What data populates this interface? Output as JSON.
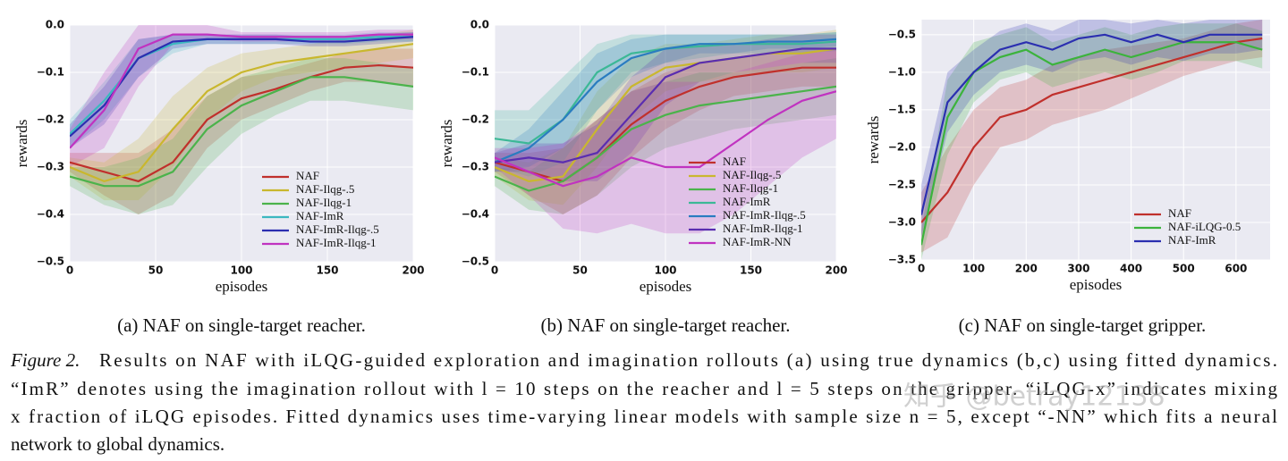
{
  "chart_data": [
    {
      "type": "line",
      "caption": "(a) NAF on single-target reacher.",
      "xlabel": "episodes",
      "ylabel": "rewards",
      "x": [
        0,
        20,
        40,
        60,
        80,
        100,
        120,
        140,
        160,
        180,
        200
      ],
      "xlim": [
        0,
        200
      ],
      "xticks": [
        0,
        50,
        100,
        150,
        200
      ],
      "ylim": [
        -0.5,
        0
      ],
      "yticks": [
        {
          "value": -0.5,
          "label": "−0.5"
        },
        {
          "value": -0.4,
          "label": "−0.4"
        },
        {
          "value": -0.3,
          "label": "−0.3"
        },
        {
          "value": -0.2,
          "label": "−0.2"
        },
        {
          "value": -0.1,
          "label": "−0.1"
        },
        {
          "value": 0,
          "label": "0.0"
        }
      ],
      "grid": true,
      "legend": "lower right",
      "series": [
        {
          "name": "NAF",
          "color": "#c0302c",
          "values": [
            -0.29,
            -0.31,
            -0.33,
            -0.29,
            -0.2,
            -0.155,
            -0.135,
            -0.11,
            -0.09,
            -0.085,
            -0.09
          ],
          "lower": [
            -0.31,
            -0.36,
            -0.4,
            -0.36,
            -0.26,
            -0.2,
            -0.17,
            -0.14,
            -0.12,
            -0.12,
            -0.13
          ],
          "upper": [
            -0.27,
            -0.27,
            -0.27,
            -0.22,
            -0.15,
            -0.11,
            -0.1,
            -0.08,
            -0.06,
            -0.05,
            -0.05
          ]
        },
        {
          "name": "NAF-Ilqg-.5",
          "color": "#c9b72e",
          "values": [
            -0.3,
            -0.33,
            -0.31,
            -0.22,
            -0.14,
            -0.1,
            -0.08,
            -0.07,
            -0.06,
            -0.05,
            -0.04
          ],
          "lower": [
            -0.32,
            -0.37,
            -0.37,
            -0.3,
            -0.2,
            -0.14,
            -0.11,
            -0.1,
            -0.09,
            -0.08,
            -0.07
          ],
          "upper": [
            -0.28,
            -0.29,
            -0.24,
            -0.15,
            -0.09,
            -0.06,
            -0.05,
            -0.04,
            -0.03,
            -0.02,
            -0.01
          ]
        },
        {
          "name": "NAF-Ilqg-1",
          "color": "#4bb34b",
          "values": [
            -0.32,
            -0.34,
            -0.34,
            -0.31,
            -0.22,
            -0.17,
            -0.14,
            -0.11,
            -0.11,
            -0.12,
            -0.13
          ],
          "lower": [
            -0.34,
            -0.38,
            -0.4,
            -0.38,
            -0.3,
            -0.23,
            -0.19,
            -0.16,
            -0.16,
            -0.17,
            -0.18
          ],
          "upper": [
            -0.3,
            -0.3,
            -0.28,
            -0.24,
            -0.15,
            -0.11,
            -0.09,
            -0.07,
            -0.07,
            -0.08,
            -0.09
          ]
        },
        {
          "name": "NAF-ImR",
          "color": "#3cb8c0",
          "values": [
            -0.23,
            -0.16,
            -0.07,
            -0.04,
            -0.03,
            -0.03,
            -0.03,
            -0.03,
            -0.03,
            -0.025,
            -0.025
          ],
          "lower": [
            -0.26,
            -0.2,
            -0.11,
            -0.06,
            -0.04,
            -0.04,
            -0.04,
            -0.04,
            -0.04,
            -0.035,
            -0.035
          ],
          "upper": [
            -0.2,
            -0.12,
            -0.03,
            -0.02,
            -0.02,
            -0.02,
            -0.02,
            -0.02,
            -0.02,
            -0.015,
            -0.015
          ]
        },
        {
          "name": "NAF-ImR-Ilqg-.5",
          "color": "#2b2fb0",
          "values": [
            -0.235,
            -0.17,
            -0.07,
            -0.035,
            -0.03,
            -0.03,
            -0.03,
            -0.035,
            -0.035,
            -0.03,
            -0.025
          ],
          "lower": [
            -0.26,
            -0.21,
            -0.11,
            -0.05,
            -0.04,
            -0.04,
            -0.04,
            -0.045,
            -0.045,
            -0.04,
            -0.035
          ],
          "upper": [
            -0.21,
            -0.13,
            -0.03,
            -0.02,
            -0.02,
            -0.02,
            -0.02,
            -0.025,
            -0.025,
            -0.02,
            -0.015
          ]
        },
        {
          "name": "NAF-ImR-Ilqg-1",
          "color": "#c033c0",
          "values": [
            -0.26,
            -0.18,
            -0.05,
            -0.02,
            -0.02,
            -0.025,
            -0.025,
            -0.025,
            -0.025,
            -0.02,
            -0.02
          ],
          "lower": [
            -0.3,
            -0.26,
            -0.13,
            -0.04,
            -0.03,
            -0.035,
            -0.035,
            -0.035,
            -0.035,
            -0.03,
            -0.03
          ],
          "upper": [
            -0.22,
            -0.1,
            0,
            0,
            0,
            -0.015,
            -0.015,
            -0.015,
            -0.015,
            -0.01,
            -0.01
          ]
        }
      ]
    },
    {
      "type": "line",
      "caption": "(b) NAF on single-target reacher.",
      "xlabel": "episodes",
      "ylabel": "rewards",
      "x": [
        0,
        20,
        40,
        60,
        80,
        100,
        120,
        140,
        160,
        180,
        200
      ],
      "xlim": [
        0,
        200
      ],
      "xticks": [
        0,
        50,
        100,
        150,
        200
      ],
      "ylim": [
        -0.5,
        0
      ],
      "yticks": [
        {
          "value": -0.5,
          "label": "−0.5"
        },
        {
          "value": -0.4,
          "label": "−0.4"
        },
        {
          "value": -0.3,
          "label": "−0.3"
        },
        {
          "value": -0.2,
          "label": "−0.2"
        },
        {
          "value": -0.1,
          "label": "−0.1"
        },
        {
          "value": 0,
          "label": "0.0"
        }
      ],
      "grid": true,
      "legend": "lower right",
      "series": [
        {
          "name": "NAF",
          "color": "#c0302c",
          "values": [
            -0.29,
            -0.31,
            -0.33,
            -0.28,
            -0.21,
            -0.16,
            -0.13,
            -0.11,
            -0.1,
            -0.09,
            -0.09
          ],
          "lower": [
            -0.31,
            -0.36,
            -0.4,
            -0.36,
            -0.28,
            -0.22,
            -0.18,
            -0.15,
            -0.14,
            -0.13,
            -0.13
          ],
          "upper": [
            -0.27,
            -0.27,
            -0.26,
            -0.2,
            -0.14,
            -0.1,
            -0.08,
            -0.07,
            -0.06,
            -0.05,
            -0.05
          ]
        },
        {
          "name": "NAF-Ilqg-.5",
          "color": "#c9b72e",
          "values": [
            -0.3,
            -0.33,
            -0.32,
            -0.22,
            -0.13,
            -0.09,
            -0.08,
            -0.07,
            -0.06,
            -0.06,
            -0.05
          ],
          "lower": [
            -0.32,
            -0.37,
            -0.38,
            -0.3,
            -0.2,
            -0.14,
            -0.12,
            -0.11,
            -0.1,
            -0.1,
            -0.09
          ],
          "upper": [
            -0.28,
            -0.29,
            -0.26,
            -0.14,
            -0.07,
            -0.04,
            -0.04,
            -0.03,
            -0.02,
            -0.02,
            -0.01
          ]
        },
        {
          "name": "NAF-Ilqg-1",
          "color": "#4bb34b",
          "values": [
            -0.32,
            -0.35,
            -0.33,
            -0.28,
            -0.22,
            -0.19,
            -0.17,
            -0.16,
            -0.15,
            -0.14,
            -0.13
          ],
          "lower": [
            -0.34,
            -0.39,
            -0.4,
            -0.36,
            -0.3,
            -0.26,
            -0.24,
            -0.22,
            -0.21,
            -0.2,
            -0.19
          ],
          "upper": [
            -0.3,
            -0.31,
            -0.26,
            -0.2,
            -0.14,
            -0.12,
            -0.1,
            -0.1,
            -0.09,
            -0.08,
            -0.07
          ]
        },
        {
          "name": "NAF-ImR",
          "color": "#3cb896",
          "values": [
            -0.24,
            -0.25,
            -0.2,
            -0.1,
            -0.06,
            -0.05,
            -0.045,
            -0.04,
            -0.04,
            -0.04,
            -0.035
          ],
          "lower": [
            -0.3,
            -0.32,
            -0.29,
            -0.18,
            -0.1,
            -0.08,
            -0.07,
            -0.06,
            -0.06,
            -0.06,
            -0.055
          ],
          "upper": [
            -0.18,
            -0.18,
            -0.11,
            -0.04,
            -0.02,
            -0.02,
            -0.02,
            -0.02,
            -0.02,
            -0.02,
            -0.015
          ]
        },
        {
          "name": "NAF-ImR-Ilqg-.5",
          "color": "#2a7cc0",
          "values": [
            -0.29,
            -0.26,
            -0.2,
            -0.12,
            -0.07,
            -0.05,
            -0.04,
            -0.04,
            -0.035,
            -0.035,
            -0.03
          ],
          "lower": [
            -0.31,
            -0.3,
            -0.26,
            -0.18,
            -0.11,
            -0.08,
            -0.06,
            -0.06,
            -0.05,
            -0.05,
            -0.045
          ],
          "upper": [
            -0.27,
            -0.22,
            -0.14,
            -0.06,
            -0.03,
            -0.02,
            -0.02,
            -0.02,
            -0.02,
            -0.02,
            -0.015
          ]
        },
        {
          "name": "NAF-ImR-Ilqg-1",
          "color": "#5a2db0",
          "values": [
            -0.29,
            -0.28,
            -0.29,
            -0.27,
            -0.19,
            -0.11,
            -0.08,
            -0.07,
            -0.06,
            -0.05,
            -0.05
          ],
          "lower": [
            -0.31,
            -0.31,
            -0.33,
            -0.33,
            -0.27,
            -0.17,
            -0.12,
            -0.1,
            -0.09,
            -0.08,
            -0.08
          ],
          "upper": [
            -0.27,
            -0.25,
            -0.25,
            -0.21,
            -0.11,
            -0.05,
            -0.04,
            -0.04,
            -0.03,
            -0.02,
            -0.02
          ]
        },
        {
          "name": "NAF-ImR-NN",
          "color": "#c033c0",
          "values": [
            -0.28,
            -0.31,
            -0.34,
            -0.32,
            -0.28,
            -0.3,
            -0.3,
            -0.25,
            -0.2,
            -0.16,
            -0.14
          ],
          "lower": [
            -0.3,
            -0.36,
            -0.43,
            -0.44,
            -0.42,
            -0.44,
            -0.44,
            -0.4,
            -0.34,
            -0.28,
            -0.24
          ],
          "upper": [
            -0.26,
            -0.26,
            -0.25,
            -0.2,
            -0.14,
            -0.12,
            -0.12,
            -0.1,
            -0.08,
            -0.06,
            -0.05
          ]
        }
      ]
    },
    {
      "type": "line",
      "caption": "(c) NAF on single-target gripper.",
      "xlabel": "episodes",
      "ylabel": "rewards",
      "x": [
        0,
        50,
        100,
        150,
        200,
        250,
        300,
        350,
        400,
        450,
        500,
        550,
        600,
        650
      ],
      "xlim": [
        0,
        665
      ],
      "xticks": [
        0,
        100,
        200,
        300,
        400,
        500,
        600
      ],
      "ylim": [
        -3.5,
        -0.3
      ],
      "yticks": [
        {
          "value": -3.5,
          "label": "−3.5"
        },
        {
          "value": -3,
          "label": "−3.0"
        },
        {
          "value": -2.5,
          "label": "−2.5"
        },
        {
          "value": -2,
          "label": "−2.0"
        },
        {
          "value": -1.5,
          "label": "−1.5"
        },
        {
          "value": -1,
          "label": "−1.0"
        },
        {
          "value": -0.5,
          "label": "−0.5"
        }
      ],
      "grid": true,
      "legend": "lower right",
      "series": [
        {
          "name": "NAF",
          "color": "#c0302c",
          "values": [
            -3,
            -2.6,
            -2,
            -1.6,
            -1.5,
            -1.3,
            -1.2,
            -1.1,
            -1,
            -0.9,
            -0.8,
            -0.7,
            -0.6,
            -0.55
          ],
          "lower": [
            -3.4,
            -3.2,
            -2.5,
            -2,
            -1.9,
            -1.7,
            -1.6,
            -1.5,
            -1.35,
            -1.2,
            -1.05,
            -0.95,
            -0.85,
            -0.8
          ],
          "upper": [
            -2.6,
            -2,
            -1.5,
            -1.2,
            -1.1,
            -0.9,
            -0.8,
            -0.7,
            -0.65,
            -0.6,
            -0.55,
            -0.45,
            -0.35,
            -0.3
          ]
        },
        {
          "name": "NAF-iLQG-0.5",
          "color": "#3cb33c",
          "values": [
            -3.3,
            -1.6,
            -1,
            -0.8,
            -0.7,
            -0.9,
            -0.8,
            -0.7,
            -0.8,
            -0.7,
            -0.6,
            -0.6,
            -0.6,
            -0.7
          ],
          "lower": [
            -3.5,
            -2.1,
            -1.4,
            -1.1,
            -1,
            -1.2,
            -1.1,
            -1,
            -1.1,
            -1,
            -0.85,
            -0.85,
            -0.85,
            -0.95
          ],
          "upper": [
            -3.1,
            -1.1,
            -0.6,
            -0.5,
            -0.4,
            -0.6,
            -0.5,
            -0.4,
            -0.5,
            -0.4,
            -0.35,
            -0.35,
            -0.35,
            -0.45
          ]
        },
        {
          "name": "NAF-ImR",
          "color": "#2b2fb0",
          "values": [
            -2.9,
            -1.4,
            -1,
            -0.7,
            -0.6,
            -0.7,
            -0.55,
            -0.5,
            -0.6,
            -0.5,
            -0.6,
            -0.5,
            -0.5,
            -0.5
          ],
          "lower": [
            -3.2,
            -1.8,
            -1.3,
            -1,
            -0.9,
            -1,
            -0.85,
            -0.8,
            -0.9,
            -0.8,
            -0.85,
            -0.75,
            -0.75,
            -0.7
          ],
          "upper": [
            -2.5,
            -1,
            -0.7,
            -0.45,
            -0.35,
            -0.45,
            -0.3,
            -0.3,
            -0.35,
            -0.3,
            -0.35,
            -0.3,
            -0.3,
            -0.3
          ]
        }
      ]
    }
  ],
  "figure_caption": {
    "label": "Figure 2.",
    "lines": [
      "Results on NAF with iLQG-guided exploration and imagination rollouts (a) using true dynamics (b,c) using fitted dynamics.",
      "“ImR” denotes using the imagination rollout with l = 10 steps on the reacher and l = 5 steps on the gripper. “iLQG-x” indicates mixing",
      "x fraction of iLQG episodes. Fitted dynamics uses time-varying linear models with sample size n = 5, except “-NN” which fits a neural",
      "network to global dynamics."
    ]
  },
  "watermark": "知乎 @betray12138"
}
